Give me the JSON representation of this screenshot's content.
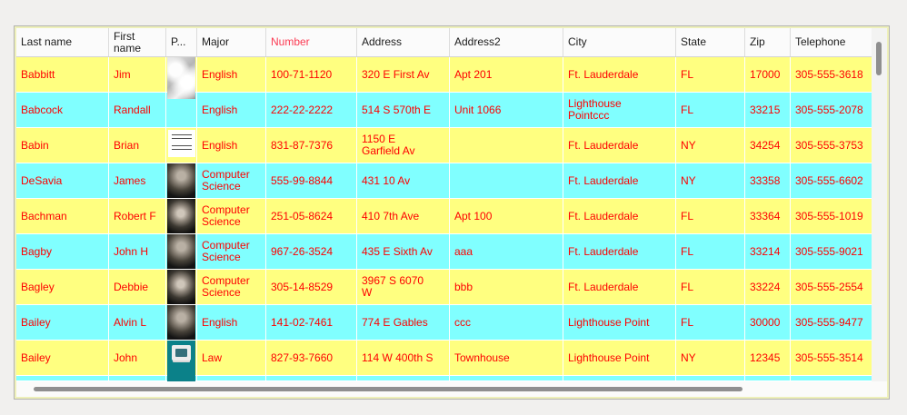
{
  "grid": {
    "header": {
      "columns": [
        "Last name",
        "First name",
        "P...",
        "Major",
        "Number",
        "Address",
        "Address2",
        "City",
        "State",
        "Zip",
        "Telephone"
      ],
      "number_column_text_color": "#fb3a52"
    },
    "rows": [
      {
        "last": "Babbitt",
        "first": "Jim",
        "photo_class": "photo p-light",
        "major": "English",
        "number": "100-71-1120",
        "address": "320 E First Av",
        "address2": "Apt 201",
        "city": "Ft. Lauderdale",
        "state": "FL",
        "zip": "17000",
        "phone": "305-555-3618"
      },
      {
        "last": "Babcock",
        "first": "Randall",
        "photo_class": "photo p-none",
        "major": "English",
        "number": "222-22-2222",
        "address": "514 S 570th E",
        "address2": "Unit 1066",
        "city": "Lighthouse\nPointccc",
        "state": "FL",
        "zip": "33215",
        "phone": "305-555-2078"
      },
      {
        "last": "Babin",
        "first": "Brian",
        "photo_class": "photo p-doc",
        "major": "English",
        "number": "831-87-7376",
        "address": "1150 E\nGarfield Av",
        "address2": "",
        "city": "Ft. Lauderdale",
        "state": "NY",
        "zip": "34254",
        "phone": "305-555-3753"
      },
      {
        "last": "DeSavia",
        "first": "James",
        "photo_class": "photo p-dark",
        "major": "Computer\nScience",
        "number": "555-99-8844",
        "address": "431 10 Av",
        "address2": "",
        "city": "Ft. Lauderdale",
        "state": "NY",
        "zip": "33358",
        "phone": "305-555-6602"
      },
      {
        "last": "Bachman",
        "first": "Robert F",
        "photo_class": "photo p-dark2",
        "major": "Computer\nScience",
        "number": "251-05-8624",
        "address": "410 7th Ave",
        "address2": "Apt 100",
        "city": "Ft. Lauderdale",
        "state": "FL",
        "zip": "33364",
        "phone": "305-555-1019"
      },
      {
        "last": "Bagby",
        "first": "John H",
        "photo_class": "photo p-dark",
        "major": "Computer\nScience",
        "number": "967-26-3524",
        "address": "435 E Sixth Av",
        "address2": "aaa",
        "city": "Ft. Lauderdale",
        "state": "FL",
        "zip": "33214",
        "phone": "305-555-9021"
      },
      {
        "last": "Bagley",
        "first": "Debbie",
        "photo_class": "photo p-dark2",
        "major": "Computer\nScience",
        "number": "305-14-8529",
        "address": "3967 S 6070\nW",
        "address2": "bbb",
        "city": "Ft. Lauderdale",
        "state": "FL",
        "zip": "33224",
        "phone": "305-555-2554"
      },
      {
        "last": "Bailey",
        "first": "Alvin L",
        "photo_class": "photo p-dark",
        "major": "English",
        "number": "141-02-7461",
        "address": "774 E Gables",
        "address2": "ccc",
        "city": "Lighthouse Point",
        "state": "FL",
        "zip": "30000",
        "phone": "305-555-9477"
      },
      {
        "last": "Bailey",
        "first": "John",
        "photo_class": "photo p-computer",
        "major": "Law",
        "number": "827-93-7660",
        "address": "114 W 400th S",
        "address2": "Townhouse",
        "city": "Lighthouse Point",
        "state": "NY",
        "zip": "12345",
        "phone": "305-555-3514"
      }
    ],
    "colors": {
      "row_yellow": "#ffff80",
      "row_cyan": "#80ffff",
      "cell_text": "#fe0000",
      "header_text": "#1b1b1b"
    }
  }
}
